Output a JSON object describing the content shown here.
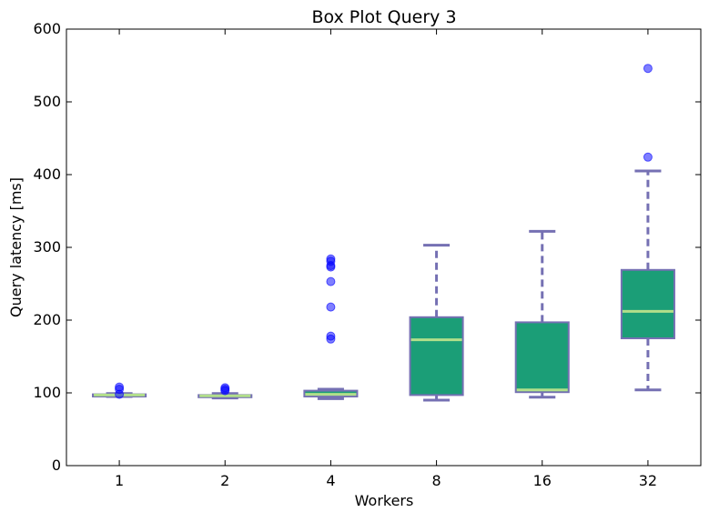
{
  "chart_data": {
    "type": "box",
    "title": "Box Plot Query 3",
    "xlabel": "Workers",
    "ylabel": "Query latency [ms]",
    "ylim": [
      0,
      600
    ],
    "yticks": [
      0,
      100,
      200,
      300,
      400,
      500,
      600
    ],
    "grid": false,
    "colors": {
      "box_fill": "#1b9e77",
      "box_edge": "#7570b3",
      "median": "#b2df8a",
      "whisker": "#7570b3",
      "flier": "#0000ff"
    },
    "categories": [
      "1",
      "2",
      "4",
      "8",
      "16",
      "32"
    ],
    "boxes": [
      {
        "category": "1",
        "whislo": 95,
        "q1": 95,
        "med": 97,
        "q3": 98,
        "whishi": 99,
        "fliers": [
          98,
          105,
          108
        ]
      },
      {
        "category": "2",
        "whislo": 93,
        "q1": 94,
        "med": 96,
        "q3": 97,
        "whishi": 99,
        "fliers": [
          103,
          105,
          107
        ]
      },
      {
        "category": "4",
        "whislo": 92,
        "q1": 95,
        "med": 98,
        "q3": 103,
        "whishi": 105,
        "fliers": [
          174,
          178,
          218,
          253,
          273,
          275,
          281,
          284
        ]
      },
      {
        "category": "8",
        "whislo": 90,
        "q1": 97,
        "med": 173,
        "q3": 204,
        "whishi": 303,
        "fliers": []
      },
      {
        "category": "16",
        "whislo": 94,
        "q1": 101,
        "med": 104,
        "q3": 197,
        "whishi": 322,
        "fliers": []
      },
      {
        "category": "32",
        "whislo": 104,
        "q1": 175,
        "med": 212,
        "q3": 269,
        "whishi": 405,
        "fliers": [
          424,
          546
        ]
      }
    ]
  }
}
